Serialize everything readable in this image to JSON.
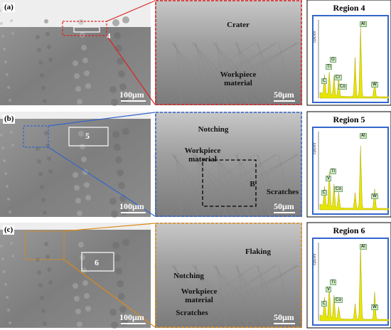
{
  "panels": [
    {
      "label": "(a)",
      "region_number": "4",
      "scale_left": "100μm",
      "scale_zoom": "50μm",
      "zoom_annotations": [
        "Crater",
        "Workpiece material"
      ],
      "eds": {
        "title": "Region 4",
        "y_label": "cps/eV",
        "peaks": [
          "C",
          "Ti",
          "O",
          "Cr",
          "Co",
          "Al",
          "W"
        ]
      }
    },
    {
      "label": "(b)",
      "region_number": "5",
      "scale_left": "100μm",
      "scale_zoom": "50μm",
      "zoom_annotations": [
        "Notching",
        "Workpiece material",
        "B",
        "Scratches"
      ],
      "eds": {
        "title": "Region 5",
        "y_label": "cps/eV",
        "peaks": [
          "C",
          "V",
          "Ti",
          "Co",
          "Al",
          "W"
        ]
      }
    },
    {
      "label": "(c)",
      "region_number": "6",
      "scale_left": "100μm",
      "scale_zoom": "50μm",
      "zoom_annotations": [
        "Flaking",
        "Notching",
        "Workpiece material",
        "Scratches"
      ],
      "eds": {
        "title": "Region 6",
        "y_label": "cps/eV",
        "peaks": [
          "C",
          "V",
          "Ti",
          "Co",
          "Al",
          "W"
        ]
      }
    }
  ]
}
